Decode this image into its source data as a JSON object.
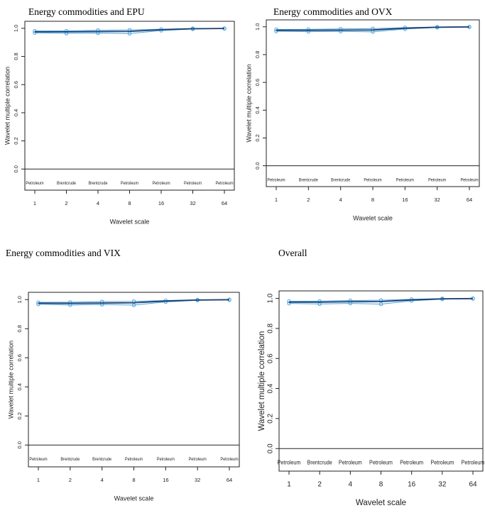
{
  "chart_data": [
    {
      "type": "line",
      "title": "Energy commodities and EPU",
      "ylabel": "Wavelet multiple correlation",
      "xlabel": "Wavelet scale",
      "categories": [
        "1",
        "2",
        "4",
        "8",
        "16",
        "32",
        "64"
      ],
      "point_labels": [
        "Petroleum",
        "Brentcrude",
        "Brentcrude",
        "Petroleum",
        "Petroleum",
        "Petroleum",
        "Petroleum"
      ],
      "ylim": [
        -0.15,
        1.05
      ],
      "yticks": [
        {
          "value": 0,
          "label": "0.0"
        },
        0.2,
        0.4,
        0.6,
        0.8,
        {
          "value": 1,
          "label": "1.0"
        }
      ],
      "reference_line": 0,
      "series": [
        {
          "color": "#4aa3df",
          "values": [
            0.968,
            0.964,
            0.966,
            0.963,
            0.984,
            0.995,
            0.998
          ]
        },
        {
          "color": "#4aa3df",
          "values": [
            0.981,
            0.982,
            0.986,
            0.988,
            0.994,
            0.999,
            1.0
          ]
        },
        {
          "color": "#1f3f6e",
          "values": [
            0.975,
            0.975,
            0.977,
            0.978,
            0.99,
            0.997,
            0.999
          ]
        }
      ]
    },
    {
      "type": "line",
      "title": "Energy commodities and OVX",
      "ylabel": "Wavelet multiple correlation",
      "xlabel": "Wavelet scale",
      "categories": [
        "1",
        "2",
        "4",
        "8",
        "16",
        "32",
        "64"
      ],
      "point_labels": [
        "Petroleum",
        "Brentcrude",
        "Brentcrude",
        "Petroleum",
        "Petroleum",
        "Petroleum",
        "Petroleum"
      ],
      "ylim": [
        -0.15,
        1.05
      ],
      "yticks": [
        {
          "value": 0,
          "label": "0.0"
        },
        0.2,
        0.4,
        0.6,
        0.8,
        {
          "value": 1,
          "label": "1.0"
        }
      ],
      "reference_line": 0,
      "series": [
        {
          "color": "#4aa3df",
          "values": [
            0.968,
            0.965,
            0.967,
            0.964,
            0.984,
            0.995,
            0.998
          ]
        },
        {
          "color": "#4aa3df",
          "values": [
            0.981,
            0.982,
            0.985,
            0.987,
            0.994,
            0.999,
            1.0
          ]
        },
        {
          "color": "#1f3f6e",
          "values": [
            0.975,
            0.975,
            0.976,
            0.977,
            0.99,
            0.997,
            0.999
          ]
        }
      ]
    },
    {
      "type": "line",
      "title": "Energy commodities and VIX",
      "ylabel": "Wavelet multiple correlation",
      "xlabel": "Wavelet scale",
      "categories": [
        "1",
        "2",
        "4",
        "8",
        "16",
        "32",
        "64"
      ],
      "point_labels": [
        "Petroleum",
        "Brentcrude",
        "Brentcrude",
        "Petroleum",
        "Petroleum",
        "Petroleum",
        "Petroleum"
      ],
      "ylim": [
        -0.15,
        1.05
      ],
      "yticks": [
        {
          "value": 0,
          "label": "0.0"
        },
        0.2,
        0.4,
        0.6,
        0.8,
        {
          "value": 1,
          "label": "1.0"
        }
      ],
      "reference_line": 0,
      "series": [
        {
          "color": "#4aa3df",
          "values": [
            0.968,
            0.963,
            0.966,
            0.962,
            0.984,
            0.995,
            0.998
          ]
        },
        {
          "color": "#4aa3df",
          "values": [
            0.981,
            0.982,
            0.986,
            0.988,
            0.994,
            0.999,
            1.0
          ]
        },
        {
          "color": "#1f3f6e",
          "values": [
            0.975,
            0.974,
            0.976,
            0.978,
            0.99,
            0.997,
            0.999
          ]
        }
      ]
    },
    {
      "type": "line",
      "title": "Overall",
      "ylabel": "Wavelet multiple correlation",
      "xlabel": "Wavelet scale",
      "categories": [
        "1",
        "2",
        "4",
        "8",
        "16",
        "32",
        "64"
      ],
      "point_labels": [
        "Petroleum",
        "Brentcrude",
        "Petroleum",
        "Petroleum",
        "Petroleum",
        "Petroleum",
        "Petroleum"
      ],
      "ylim": [
        -0.15,
        1.05
      ],
      "yticks": [
        {
          "value": 0,
          "label": "0.0"
        },
        0.2,
        0.4,
        0.6,
        0.8,
        {
          "value": 1,
          "label": "1.0"
        }
      ],
      "reference_line": 0,
      "series": [
        {
          "color": "#4aa3df",
          "values": [
            0.967,
            0.963,
            0.967,
            0.962,
            0.984,
            0.995,
            0.998
          ]
        },
        {
          "color": "#4aa3df",
          "values": [
            0.981,
            0.982,
            0.986,
            0.988,
            0.994,
            0.999,
            1.0
          ]
        },
        {
          "color": "#1f3f6e",
          "values": [
            0.975,
            0.975,
            0.978,
            0.979,
            0.99,
            0.997,
            0.999
          ]
        }
      ]
    }
  ]
}
